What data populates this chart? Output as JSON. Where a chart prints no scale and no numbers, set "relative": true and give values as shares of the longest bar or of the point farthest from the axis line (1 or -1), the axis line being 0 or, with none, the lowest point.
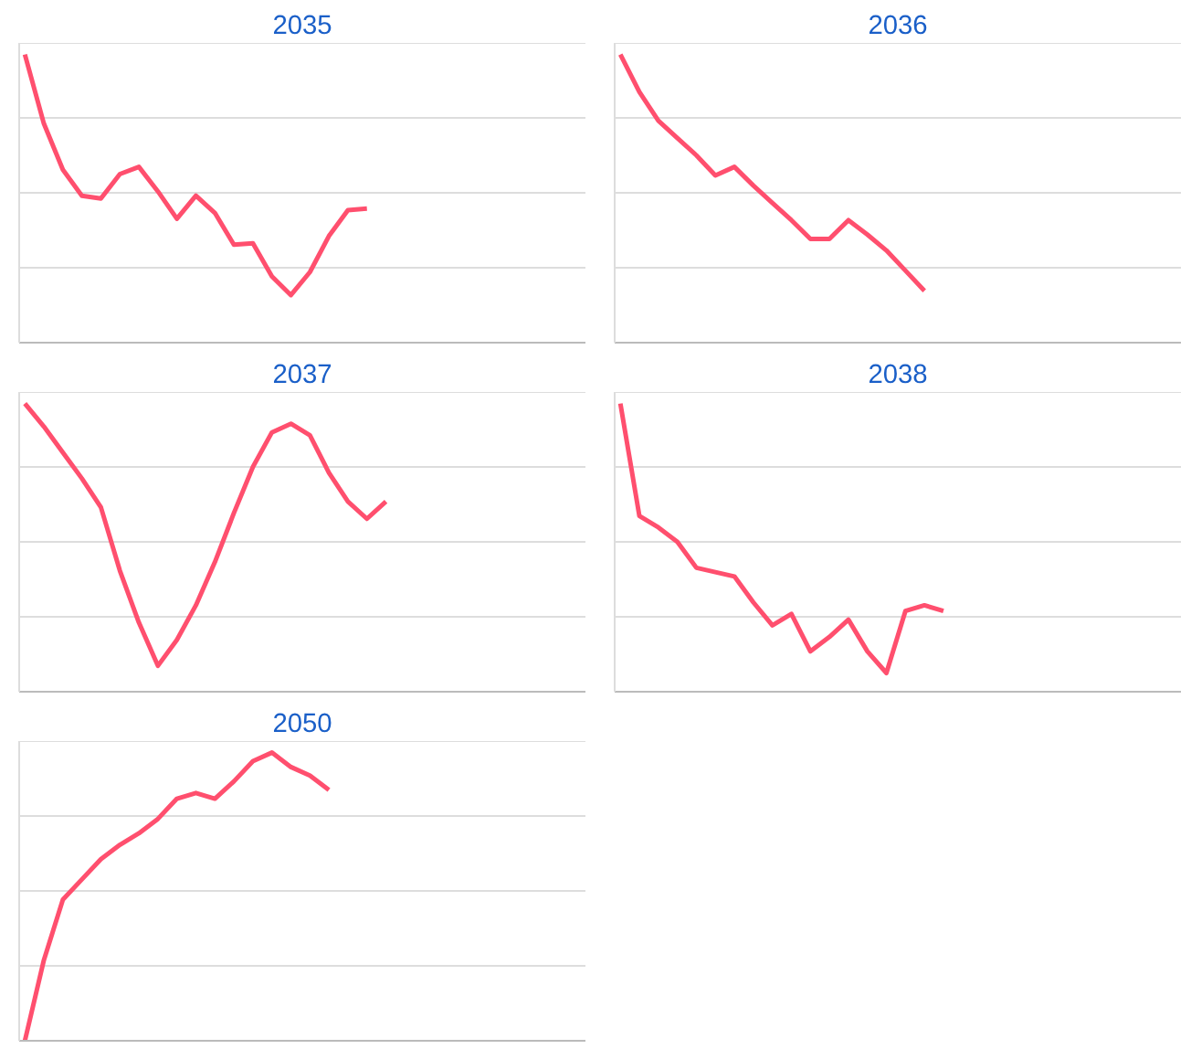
{
  "chart_data": [
    {
      "type": "line",
      "title": "2035",
      "categories": [
        null,
        null,
        null,
        null,
        null,
        null,
        null,
        null,
        null,
        null,
        null,
        null,
        null,
        null,
        null,
        null,
        null,
        null,
        null,
        null,
        null,
        null,
        null,
        null,
        null,
        null,
        null,
        null,
        null,
        null
      ],
      "series": [
        {
          "color": "#ff4f6e",
          "values": [
            1.0,
            0.76,
            0.6,
            0.51,
            0.5,
            0.585,
            0.61,
            0.525,
            0.43,
            0.51,
            0.45,
            0.34,
            0.345,
            0.23,
            0.165,
            0.245,
            0.37,
            0.46,
            0.465,
            null,
            null,
            null,
            null,
            null,
            null,
            null,
            null,
            null,
            null,
            null
          ]
        }
      ],
      "relative": true,
      "grid": "y"
    },
    {
      "type": "line",
      "title": "2036",
      "categories": [
        null,
        null,
        null,
        null,
        null,
        null,
        null,
        null,
        null,
        null,
        null,
        null,
        null,
        null,
        null,
        null,
        null,
        null,
        null,
        null,
        null,
        null,
        null,
        null,
        null,
        null,
        null,
        null,
        null,
        null
      ],
      "series": [
        {
          "color": "#ff4f6e",
          "values": [
            1.0,
            0.87,
            0.77,
            0.71,
            0.65,
            0.58,
            0.61,
            0.545,
            0.485,
            0.425,
            0.36,
            0.36,
            0.425,
            0.375,
            0.32,
            0.25,
            0.18,
            null,
            null,
            null,
            null,
            null,
            null,
            null,
            null,
            null,
            null,
            null,
            null,
            null
          ]
        }
      ],
      "relative": true,
      "grid": "y"
    },
    {
      "type": "line",
      "title": "2037",
      "categories": [
        null,
        null,
        null,
        null,
        null,
        null,
        null,
        null,
        null,
        null,
        null,
        null,
        null,
        null,
        null,
        null,
        null,
        null,
        null,
        null,
        null,
        null,
        null,
        null,
        null,
        null,
        null,
        null,
        null,
        null
      ],
      "series": [
        {
          "color": "#ff4f6e",
          "values": [
            1.0,
            0.92,
            0.83,
            0.74,
            0.64,
            0.42,
            0.24,
            0.09,
            0.18,
            0.3,
            0.45,
            0.62,
            0.78,
            0.9,
            0.93,
            0.89,
            0.76,
            0.66,
            0.6,
            0.66,
            null,
            null,
            null,
            null,
            null,
            null,
            null,
            null,
            null,
            null
          ]
        }
      ],
      "relative": true,
      "grid": "y"
    },
    {
      "type": "line",
      "title": "2038",
      "categories": [
        null,
        null,
        null,
        null,
        null,
        null,
        null,
        null,
        null,
        null,
        null,
        null,
        null,
        null,
        null,
        null,
        null,
        null,
        null,
        null,
        null,
        null,
        null,
        null,
        null,
        null,
        null,
        null,
        null,
        null
      ],
      "series": [
        {
          "color": "#ff4f6e",
          "values": [
            1.0,
            0.61,
            0.57,
            0.52,
            0.43,
            0.415,
            0.4,
            0.31,
            0.23,
            0.27,
            0.14,
            0.19,
            0.25,
            0.14,
            0.065,
            0.28,
            0.3,
            0.28,
            null,
            null,
            null,
            null,
            null,
            null,
            null,
            null,
            null,
            null,
            null,
            null
          ]
        }
      ],
      "relative": true,
      "grid": "y"
    },
    {
      "type": "line",
      "title": "2050",
      "categories": [
        null,
        null,
        null,
        null,
        null,
        null,
        null,
        null,
        null,
        null,
        null,
        null,
        null,
        null,
        null,
        null,
        null,
        null,
        null,
        null,
        null,
        null,
        null,
        null,
        null,
        null,
        null,
        null,
        null,
        null
      ],
      "series": [
        {
          "color": "#ff4f6e",
          "values": [
            0.0,
            0.28,
            0.49,
            0.56,
            0.63,
            0.68,
            0.72,
            0.77,
            0.84,
            0.86,
            0.84,
            0.9,
            0.97,
            1.0,
            0.95,
            0.92,
            0.87,
            null,
            null,
            null,
            null,
            null,
            null,
            null,
            null,
            null,
            null,
            null,
            null,
            null
          ]
        }
      ],
      "relative": true,
      "grid": "y"
    }
  ]
}
